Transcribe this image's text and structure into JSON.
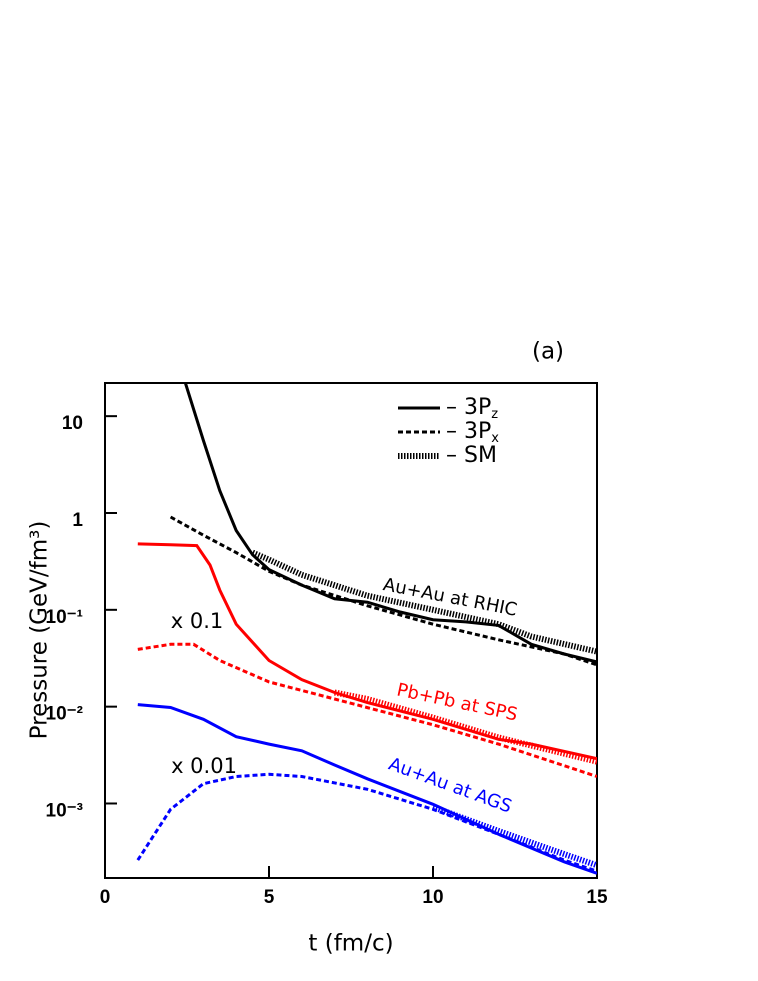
{
  "chart_data": {
    "type": "line",
    "panel_label": "(a)",
    "x_label": "t    (fm/c)",
    "y_label": "Pressure  (GeV/fm³)",
    "xlim": [
      0,
      15
    ],
    "xticks": [
      0,
      5,
      10,
      15
    ],
    "ylim": [
      0.00017,
      22
    ],
    "log_y": true,
    "yticks": [
      {
        "value": 10,
        "label": "10"
      },
      {
        "value": 1,
        "label": "1"
      },
      {
        "value": 0.1,
        "label": "10⁻¹"
      },
      {
        "value": 0.01,
        "label": "10⁻²"
      },
      {
        "value": 0.001,
        "label": "10⁻³"
      }
    ],
    "legend": [
      {
        "label": "– 3P",
        "subscript": "z",
        "dash": "solid"
      },
      {
        "label": "– 3P",
        "subscript": "x",
        "dash": "dashed"
      },
      {
        "label": "– SM",
        "dash": "dotted"
      }
    ],
    "annotations": [
      "Au+Au at RHIC",
      "Pb+Pb at SPS",
      "Au+Au at AGS",
      "x 0.1",
      "x 0.01"
    ],
    "series": [
      {
        "color": "#000000",
        "dash": "solid",
        "x": [
          2.45,
          3,
          3.5,
          4,
          4.5,
          5,
          6,
          7,
          8,
          9,
          10,
          11,
          12,
          13,
          14,
          15
        ],
        "values": [
          22,
          5.6,
          1.7,
          0.66,
          0.37,
          0.26,
          0.18,
          0.13,
          0.12,
          0.095,
          0.079,
          0.075,
          0.069,
          0.044,
          0.035,
          0.029
        ]
      },
      {
        "color": "#000000",
        "dash": "dashed",
        "x": [
          2,
          3,
          4,
          5,
          6,
          8,
          10,
          12,
          14,
          15
        ],
        "values": [
          0.91,
          0.59,
          0.39,
          0.25,
          0.18,
          0.11,
          0.071,
          0.049,
          0.035,
          0.027
        ]
      },
      {
        "color": "#000000",
        "dash": "dotted",
        "x": [
          4.5,
          5,
          6,
          8,
          10,
          12,
          13,
          15
        ],
        "values": [
          0.39,
          0.33,
          0.23,
          0.14,
          0.1,
          0.071,
          0.053,
          0.037
        ]
      },
      {
        "color": "#ff0000",
        "dash": "solid",
        "x": [
          1,
          2,
          2.8,
          3.2,
          3.5,
          4,
          5,
          6,
          7,
          8,
          10,
          12,
          13,
          15
        ],
        "values": [
          0.48,
          0.47,
          0.46,
          0.29,
          0.16,
          0.071,
          0.03,
          0.019,
          0.014,
          0.011,
          0.0074,
          0.0046,
          0.0041,
          0.0029
        ]
      },
      {
        "color": "#ff0000",
        "dash": "dashed",
        "x": [
          1,
          2,
          2.7,
          3.5,
          5,
          7,
          10,
          12,
          15
        ],
        "values": [
          0.039,
          0.044,
          0.044,
          0.03,
          0.018,
          0.012,
          0.0065,
          0.0041,
          0.0019
        ]
      },
      {
        "color": "#ff0000",
        "dash": "dotted",
        "x": [
          7,
          8,
          10,
          12,
          15
        ],
        "values": [
          0.014,
          0.012,
          0.0077,
          0.0048,
          0.0027
        ]
      },
      {
        "color": "#0000ff",
        "dash": "solid",
        "x": [
          1,
          2,
          3,
          4,
          5,
          6,
          7,
          8,
          10,
          12,
          14,
          15
        ],
        "values": [
          0.0105,
          0.0098,
          0.0074,
          0.0049,
          0.0041,
          0.0035,
          0.0025,
          0.0018,
          0.00098,
          0.00048,
          0.00025,
          0.00019
        ]
      },
      {
        "color": "#0000ff",
        "dash": "dashed",
        "x": [
          1,
          2,
          3,
          4,
          5,
          6,
          8,
          10,
          12,
          14,
          15
        ],
        "values": [
          0.00026,
          0.00087,
          0.0016,
          0.0019,
          0.002,
          0.0019,
          0.0014,
          0.00087,
          0.00048,
          0.00026,
          0.0002
        ]
      },
      {
        "color": "#0000ff",
        "dash": "dotted",
        "x": [
          10,
          12,
          14,
          15
        ],
        "values": [
          0.00092,
          0.00052,
          0.0003,
          0.00023
        ]
      }
    ]
  }
}
